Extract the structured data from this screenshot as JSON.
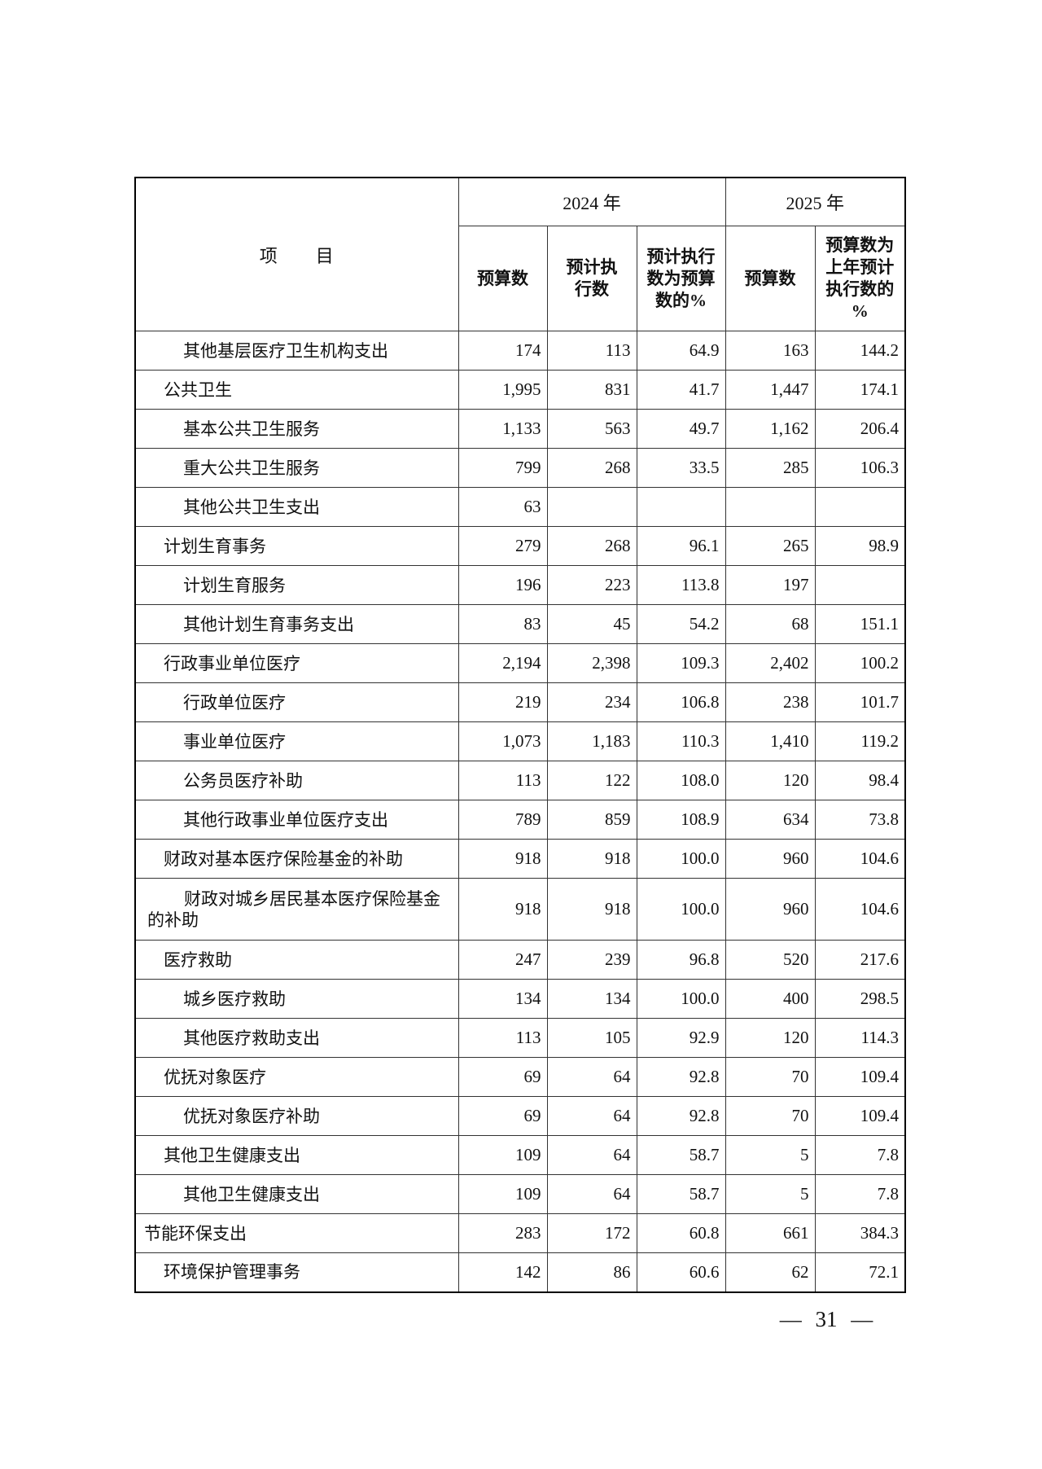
{
  "table": {
    "item_header": "项　　目",
    "year_2024": "2024 年",
    "year_2025": "2025 年",
    "sub_headers": {
      "budget_2024": "预算数",
      "expected_exec": "预计执\n行数",
      "exec_pct": "预计执行\n数为预算\n数的%",
      "budget_2025": "预算数",
      "budget_pct": "预算数为\n上年预计\n执行数的\n%"
    },
    "rows": [
      {
        "item": "其他基层医疗卫生机构支出",
        "indent": 2,
        "values": [
          "174",
          "113",
          "64.9",
          "163",
          "144.2"
        ]
      },
      {
        "item": "公共卫生",
        "indent": 1,
        "values": [
          "1,995",
          "831",
          "41.7",
          "1,447",
          "174.1"
        ]
      },
      {
        "item": "基本公共卫生服务",
        "indent": 2,
        "values": [
          "1,133",
          "563",
          "49.7",
          "1,162",
          "206.4"
        ]
      },
      {
        "item": "重大公共卫生服务",
        "indent": 2,
        "values": [
          "799",
          "268",
          "33.5",
          "285",
          "106.3"
        ]
      },
      {
        "item": "其他公共卫生支出",
        "indent": 2,
        "values": [
          "63",
          "",
          "",
          "",
          ""
        ]
      },
      {
        "item": "计划生育事务",
        "indent": 1,
        "values": [
          "279",
          "268",
          "96.1",
          "265",
          "98.9"
        ]
      },
      {
        "item": "计划生育服务",
        "indent": 2,
        "values": [
          "196",
          "223",
          "113.8",
          "197",
          ""
        ]
      },
      {
        "item": "其他计划生育事务支出",
        "indent": 2,
        "values": [
          "83",
          "45",
          "54.2",
          "68",
          "151.1"
        ]
      },
      {
        "item": "行政事业单位医疗",
        "indent": 1,
        "values": [
          "2,194",
          "2,398",
          "109.3",
          "2,402",
          "100.2"
        ]
      },
      {
        "item": "行政单位医疗",
        "indent": 2,
        "values": [
          "219",
          "234",
          "106.8",
          "238",
          "101.7"
        ]
      },
      {
        "item": "事业单位医疗",
        "indent": 2,
        "values": [
          "1,073",
          "1,183",
          "110.3",
          "1,410",
          "119.2"
        ]
      },
      {
        "item": "公务员医疗补助",
        "indent": 2,
        "values": [
          "113",
          "122",
          "108.0",
          "120",
          "98.4"
        ]
      },
      {
        "item": "其他行政事业单位医疗支出",
        "indent": 2,
        "values": [
          "789",
          "859",
          "108.9",
          "634",
          "73.8"
        ]
      },
      {
        "item": "财政对基本医疗保险基金的补助",
        "indent": 1,
        "values": [
          "918",
          "918",
          "100.0",
          "960",
          "104.6"
        ]
      },
      {
        "item": "财政对城乡居民基本医疗保险基金的补助",
        "indent": 2,
        "values": [
          "918",
          "918",
          "100.0",
          "960",
          "104.6"
        ]
      },
      {
        "item": "医疗救助",
        "indent": 1,
        "values": [
          "247",
          "239",
          "96.8",
          "520",
          "217.6"
        ]
      },
      {
        "item": "城乡医疗救助",
        "indent": 2,
        "values": [
          "134",
          "134",
          "100.0",
          "400",
          "298.5"
        ]
      },
      {
        "item": "其他医疗救助支出",
        "indent": 2,
        "values": [
          "113",
          "105",
          "92.9",
          "120",
          "114.3"
        ]
      },
      {
        "item": "优抚对象医疗",
        "indent": 1,
        "values": [
          "69",
          "64",
          "92.8",
          "70",
          "109.4"
        ]
      },
      {
        "item": "优抚对象医疗补助",
        "indent": 2,
        "values": [
          "69",
          "64",
          "92.8",
          "70",
          "109.4"
        ]
      },
      {
        "item": "其他卫生健康支出",
        "indent": 1,
        "values": [
          "109",
          "64",
          "58.7",
          "5",
          "7.8"
        ]
      },
      {
        "item": "其他卫生健康支出",
        "indent": 2,
        "values": [
          "109",
          "64",
          "58.7",
          "5",
          "7.8"
        ]
      },
      {
        "item": "节能环保支出",
        "indent": 0,
        "values": [
          "283",
          "172",
          "60.8",
          "661",
          "384.3"
        ]
      },
      {
        "item": "环境保护管理事务",
        "indent": 1,
        "values": [
          "142",
          "86",
          "60.6",
          "62",
          "72.1"
        ]
      }
    ]
  },
  "footer": {
    "page_number": "— 31 —"
  }
}
